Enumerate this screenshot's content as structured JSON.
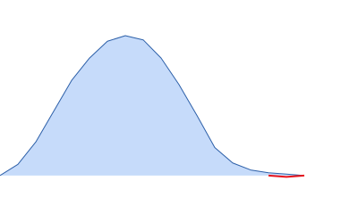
{
  "chart_data": {
    "type": "area",
    "x": [
      0,
      20,
      40,
      60,
      80,
      100,
      120,
      140,
      160,
      180,
      200,
      220,
      240,
      260,
      280,
      300,
      320,
      340
    ],
    "series": [
      {
        "color": "#2c5fa8",
        "fill": "#c6dbfa",
        "values": [
          0,
          0.08,
          0.24,
          0.46,
          0.68,
          0.84,
          0.96,
          1.0,
          0.97,
          0.84,
          0.65,
          0.43,
          0.2,
          0.09,
          0.04,
          0.02,
          0.01,
          0
        ]
      },
      {
        "color": "#e8141c",
        "values": [
          null,
          null,
          null,
          null,
          null,
          null,
          null,
          null,
          null,
          null,
          null,
          null,
          null,
          null,
          null,
          0,
          -0.01,
          0
        ]
      }
    ],
    "xlim": [
      0,
      400
    ],
    "ylim": [
      -0.02,
      1.0
    ]
  }
}
